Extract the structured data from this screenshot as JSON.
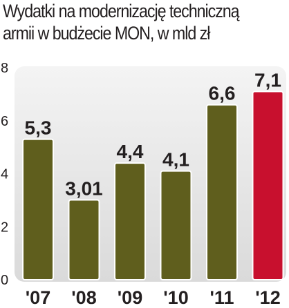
{
  "chart_data": {
    "type": "bar",
    "title": "Wydatki na modernizację techniczną armii w budżecie MON, w mld zł",
    "categories": [
      "'07",
      "'08",
      "'09",
      "'10",
      "'11",
      "'12"
    ],
    "values": [
      5.3,
      3.01,
      4.4,
      4.1,
      6.6,
      7.1
    ],
    "value_labels": [
      "5,3",
      "3,01",
      "4,4",
      "4,1",
      "6,6",
      "7,1"
    ],
    "ylim": [
      0,
      8
    ],
    "yticks": [
      0,
      2,
      4,
      6,
      8
    ],
    "grid": false,
    "legend": "none",
    "colors": {
      "bar": "#5f5e1d",
      "highlight": "#c8102e",
      "highlight_index": 5,
      "background": "#dcdcdc",
      "text": "#231f20"
    }
  }
}
